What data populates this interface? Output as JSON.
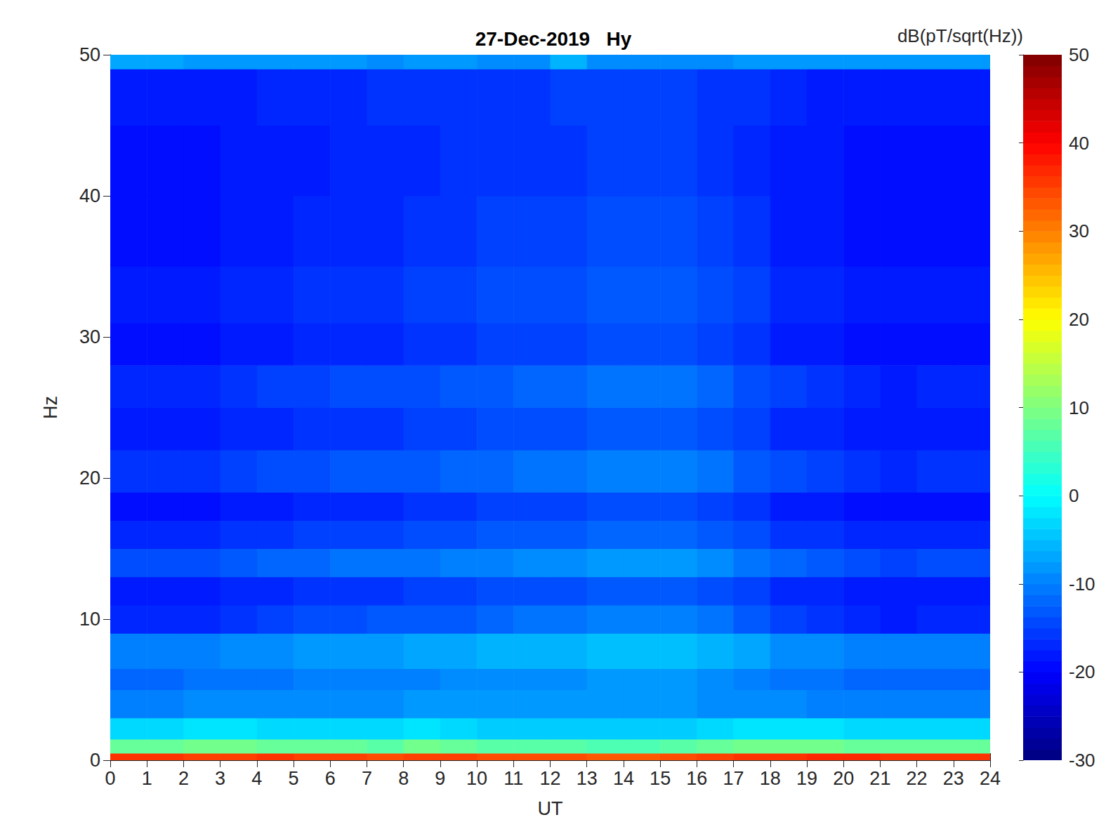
{
  "chart_data": {
    "type": "heatmap",
    "title": "27-Dec-2019   Hy",
    "x_label": "UT",
    "y_label": "Hz",
    "xlim": [
      0,
      24
    ],
    "xticks": [
      0,
      1,
      2,
      3,
      4,
      5,
      6,
      7,
      8,
      9,
      10,
      11,
      12,
      13,
      14,
      15,
      16,
      17,
      18,
      19,
      20,
      21,
      22,
      23,
      24
    ],
    "ylim": [
      0,
      50
    ],
    "yticks": [
      0,
      10,
      20,
      30,
      40,
      50
    ],
    "x_edges": [
      0,
      1,
      2,
      3,
      4,
      5,
      6,
      7,
      8,
      9,
      10,
      11,
      12,
      13,
      14,
      15,
      16,
      17,
      18,
      19,
      20,
      21,
      22,
      23,
      24
    ],
    "y_edges": [
      0,
      0.5,
      1.5,
      3,
      5,
      6.5,
      9,
      11,
      13,
      15,
      17,
      19,
      22,
      25,
      28,
      31,
      35,
      40,
      45,
      49,
      50
    ],
    "z": [
      [
        36,
        36,
        35,
        35,
        36,
        35,
        35,
        34,
        35,
        35,
        34,
        34,
        34,
        33,
        33,
        34,
        35,
        36,
        36,
        37,
        37,
        36,
        36,
        36
      ],
      [
        8,
        8,
        9,
        9,
        8,
        8,
        8,
        7,
        9,
        8,
        7,
        7,
        7,
        6,
        6,
        7,
        8,
        9,
        9,
        9,
        8,
        8,
        8,
        8
      ],
      [
        -3,
        -3,
        -2,
        -2,
        -3,
        -3,
        -3,
        -3,
        -2,
        -3,
        -4,
        -4,
        -4,
        -4,
        -4,
        -4,
        -3,
        -2,
        -2,
        -2,
        -3,
        -3,
        -3,
        -3
      ],
      [
        -10,
        -10,
        -9,
        -9,
        -9,
        -9,
        -9,
        -9,
        -8,
        -8,
        -8,
        -8,
        -8,
        -8,
        -8,
        -8,
        -9,
        -9,
        -9,
        -10,
        -10,
        -10,
        -10,
        -10
      ],
      [
        -12,
        -12,
        -11,
        -11,
        -11,
        -10,
        -10,
        -10,
        -10,
        -9,
        -9,
        -9,
        -9,
        -8,
        -8,
        -8,
        -9,
        -10,
        -11,
        -11,
        -12,
        -12,
        -12,
        -12
      ],
      [
        -10,
        -10,
        -10,
        -9,
        -9,
        -8,
        -8,
        -8,
        -7,
        -7,
        -6,
        -6,
        -6,
        -5,
        -5,
        -5,
        -6,
        -7,
        -9,
        -9,
        -10,
        -10,
        -10,
        -10
      ],
      [
        -17,
        -17,
        -17,
        -16,
        -15,
        -14,
        -14,
        -13,
        -13,
        -13,
        -12,
        -11,
        -11,
        -10,
        -10,
        -10,
        -11,
        -13,
        -15,
        -16,
        -17,
        -18,
        -17,
        -17
      ],
      [
        -18,
        -18,
        -18,
        -17,
        -17,
        -16,
        -16,
        -16,
        -15,
        -15,
        -14,
        -14,
        -14,
        -13,
        -13,
        -13,
        -14,
        -15,
        -17,
        -17,
        -18,
        -18,
        -18,
        -18
      ],
      [
        -14,
        -14,
        -14,
        -13,
        -12,
        -12,
        -11,
        -11,
        -11,
        -10,
        -10,
        -9,
        -9,
        -8,
        -8,
        -8,
        -9,
        -11,
        -12,
        -13,
        -14,
        -15,
        -14,
        -14
      ],
      [
        -17,
        -17,
        -17,
        -16,
        -16,
        -15,
        -15,
        -15,
        -14,
        -14,
        -13,
        -13,
        -13,
        -12,
        -12,
        -12,
        -13,
        -14,
        -16,
        -16,
        -17,
        -17,
        -17,
        -17
      ],
      [
        -19,
        -19,
        -19,
        -18,
        -18,
        -17,
        -17,
        -17,
        -16,
        -16,
        -15,
        -15,
        -15,
        -14,
        -14,
        -14,
        -15,
        -16,
        -18,
        -18,
        -19,
        -19,
        -19,
        -19
      ],
      [
        -16,
        -16,
        -16,
        -15,
        -14,
        -14,
        -13,
        -13,
        -13,
        -12,
        -12,
        -11,
        -11,
        -10,
        -10,
        -10,
        -11,
        -13,
        -14,
        -15,
        -16,
        -17,
        -16,
        -16
      ],
      [
        -18,
        -18,
        -18,
        -17,
        -17,
        -16,
        -16,
        -16,
        -15,
        -15,
        -14,
        -14,
        -14,
        -13,
        -13,
        -13,
        -14,
        -15,
        -17,
        -17,
        -18,
        -18,
        -18,
        -18
      ],
      [
        -17,
        -17,
        -17,
        -16,
        -15,
        -15,
        -14,
        -14,
        -14,
        -13,
        -13,
        -12,
        -12,
        -11,
        -11,
        -11,
        -12,
        -14,
        -15,
        -16,
        -17,
        -18,
        -17,
        -17
      ],
      [
        -19,
        -19,
        -19,
        -18,
        -18,
        -17,
        -17,
        -17,
        -16,
        -16,
        -15,
        -15,
        -15,
        -14,
        -14,
        -14,
        -15,
        -16,
        -18,
        -18,
        -19,
        -19,
        -19,
        -19
      ],
      [
        -18,
        -18,
        -18,
        -17,
        -17,
        -16,
        -16,
        -16,
        -15,
        -15,
        -14,
        -14,
        -14,
        -13,
        -13,
        -13,
        -14,
        -15,
        -17,
        -17,
        -18,
        -18,
        -18,
        -18
      ],
      [
        -19,
        -19,
        -19,
        -18,
        -18,
        -17,
        -17,
        -17,
        -16,
        -16,
        -15,
        -15,
        -15,
        -14,
        -14,
        -14,
        -15,
        -16,
        -18,
        -18,
        -19,
        -19,
        -19,
        -19
      ],
      [
        -19,
        -19,
        -19,
        -18,
        -18,
        -18,
        -17,
        -17,
        -17,
        -16,
        -16,
        -16,
        -16,
        -15,
        -15,
        -15,
        -16,
        -17,
        -18,
        -18,
        -19,
        -19,
        -19,
        -19
      ],
      [
        -18,
        -18,
        -18,
        -18,
        -17,
        -17,
        -17,
        -16,
        -16,
        -16,
        -16,
        -16,
        -15,
        -15,
        -15,
        -15,
        -16,
        -16,
        -17,
        -18,
        -18,
        -18,
        -18,
        -18
      ],
      [
        -7,
        -7,
        -8,
        -8,
        -8,
        -8,
        -8,
        -9,
        -8,
        -8,
        -9,
        -9,
        -6,
        -9,
        -9,
        -9,
        -9,
        -8,
        -8,
        -8,
        -8,
        -8,
        -8,
        -8
      ]
    ],
    "colorbar": {
      "label": "dB(pT/sqrt(Hz))",
      "range": [
        -30,
        50
      ],
      "ticks": [
        -30,
        -20,
        -10,
        0,
        10,
        20,
        30,
        40,
        50
      ]
    }
  }
}
